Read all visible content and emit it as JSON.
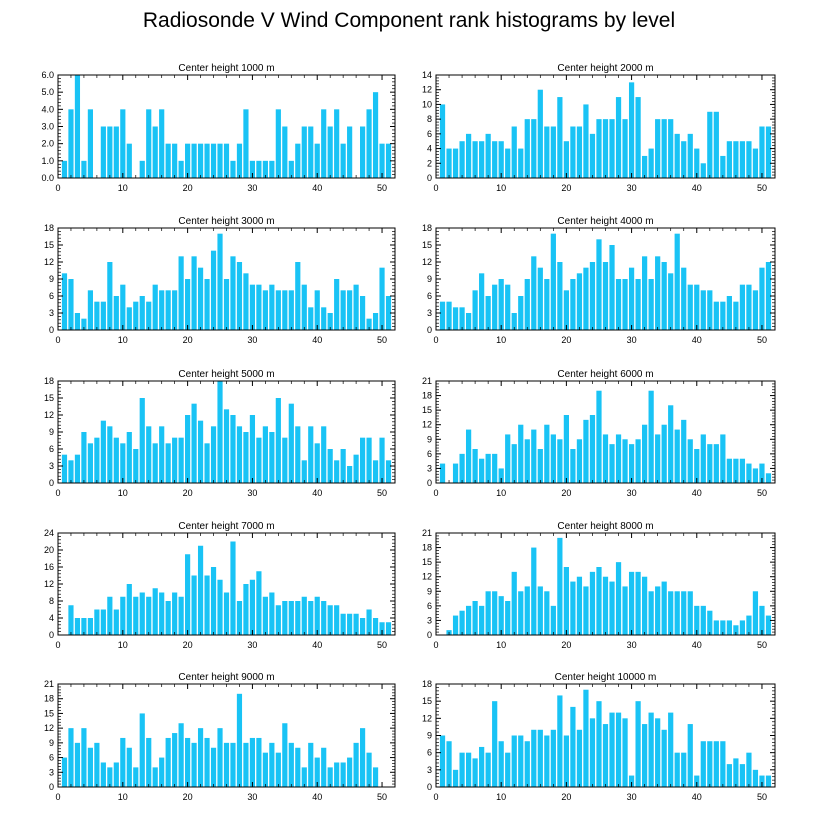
{
  "title": "Radiosonde V Wind Component rank histograms by level",
  "colors": {
    "bar": "#19c3f5",
    "axis": "#000000",
    "background": "#ffffff"
  },
  "chart_data": [
    {
      "type": "bar",
      "title": "Center height 1000 m",
      "x": [
        1,
        2,
        3,
        4,
        5,
        6,
        7,
        8,
        9,
        10,
        11,
        12,
        13,
        14,
        15,
        16,
        17,
        18,
        19,
        20,
        21,
        22,
        23,
        24,
        25,
        26,
        27,
        28,
        29,
        30,
        31,
        32,
        33,
        34,
        35,
        36,
        37,
        38,
        39,
        40,
        41,
        42,
        43,
        44,
        45,
        46,
        47,
        48,
        49,
        50,
        51
      ],
      "values": [
        1,
        4,
        6,
        1,
        4,
        0,
        3,
        3,
        3,
        4,
        2,
        0,
        1,
        4,
        3,
        4,
        2,
        2,
        1,
        2,
        2,
        2,
        2,
        2,
        2,
        2,
        1,
        2,
        4,
        1,
        1,
        1,
        1,
        4,
        3,
        1,
        2,
        3,
        3,
        2,
        4,
        3,
        4,
        2,
        3,
        0,
        3,
        4,
        5,
        2,
        2
      ],
      "xlim": [
        0,
        52
      ],
      "ylim": [
        0,
        6
      ],
      "yticks": [
        0,
        1,
        2,
        3,
        4,
        5,
        6
      ],
      "yticklabels": [
        "0.0",
        "1.0",
        "2.0",
        "3.0",
        "4.0",
        "5.0",
        "6.0"
      ],
      "xticks": [
        0,
        10,
        20,
        30,
        40,
        50
      ]
    },
    {
      "type": "bar",
      "title": "Center height 2000 m",
      "x": [
        1,
        2,
        3,
        4,
        5,
        6,
        7,
        8,
        9,
        10,
        11,
        12,
        13,
        14,
        15,
        16,
        17,
        18,
        19,
        20,
        21,
        22,
        23,
        24,
        25,
        26,
        27,
        28,
        29,
        30,
        31,
        32,
        33,
        34,
        35,
        36,
        37,
        38,
        39,
        40,
        41,
        42,
        43,
        44,
        45,
        46,
        47,
        48,
        49,
        50,
        51
      ],
      "values": [
        10,
        4,
        4,
        5,
        6,
        5,
        5,
        6,
        5,
        5,
        4,
        7,
        4,
        8,
        8,
        12,
        7,
        7,
        11,
        5,
        7,
        7,
        10,
        6,
        8,
        8,
        8,
        11,
        8,
        13,
        11,
        3,
        4,
        8,
        8,
        8,
        6,
        5,
        6,
        4,
        2,
        9,
        9,
        3,
        5,
        5,
        5,
        5,
        4,
        7,
        7
      ],
      "xlim": [
        0,
        52
      ],
      "ylim": [
        0,
        14
      ],
      "yticks": [
        0,
        2,
        4,
        6,
        8,
        10,
        12,
        14
      ],
      "yticklabels": [
        "0",
        "2",
        "4",
        "6",
        "8",
        "10",
        "12",
        "14"
      ],
      "xticks": [
        0,
        10,
        20,
        30,
        40,
        50
      ]
    },
    {
      "type": "bar",
      "title": "Center height 3000 m",
      "x": [
        1,
        2,
        3,
        4,
        5,
        6,
        7,
        8,
        9,
        10,
        11,
        12,
        13,
        14,
        15,
        16,
        17,
        18,
        19,
        20,
        21,
        22,
        23,
        24,
        25,
        26,
        27,
        28,
        29,
        30,
        31,
        32,
        33,
        34,
        35,
        36,
        37,
        38,
        39,
        40,
        41,
        42,
        43,
        44,
        45,
        46,
        47,
        48,
        49,
        50,
        51
      ],
      "values": [
        10,
        9,
        3,
        2,
        7,
        5,
        5,
        12,
        6,
        8,
        4,
        5,
        6,
        5,
        8,
        7,
        7,
        7,
        13,
        9,
        13,
        11,
        9,
        14,
        17,
        9,
        13,
        12,
        10,
        8,
        8,
        7,
        8,
        7,
        7,
        7,
        12,
        8,
        4,
        7,
        4,
        3,
        9,
        7,
        7,
        8,
        6,
        2,
        3,
        11,
        6
      ],
      "xlim": [
        0,
        52
      ],
      "ylim": [
        0,
        18
      ],
      "yticks": [
        0,
        3,
        6,
        9,
        12,
        15,
        18
      ],
      "yticklabels": [
        "0",
        "3",
        "6",
        "9",
        "12",
        "15",
        "18"
      ],
      "xticks": [
        0,
        10,
        20,
        30,
        40,
        50
      ]
    },
    {
      "type": "bar",
      "title": "Center height 4000 m",
      "x": [
        1,
        2,
        3,
        4,
        5,
        6,
        7,
        8,
        9,
        10,
        11,
        12,
        13,
        14,
        15,
        16,
        17,
        18,
        19,
        20,
        21,
        22,
        23,
        24,
        25,
        26,
        27,
        28,
        29,
        30,
        31,
        32,
        33,
        34,
        35,
        36,
        37,
        38,
        39,
        40,
        41,
        42,
        43,
        44,
        45,
        46,
        47,
        48,
        49,
        50,
        51
      ],
      "values": [
        5,
        5,
        4,
        4,
        3,
        7,
        10,
        6,
        8,
        9,
        8,
        3,
        6,
        9,
        13,
        11,
        9,
        17,
        12,
        7,
        9,
        10,
        11,
        12,
        16,
        12,
        15,
        9,
        9,
        11,
        9,
        13,
        9,
        13,
        12,
        10,
        17,
        11,
        8,
        8,
        7,
        7,
        5,
        5,
        6,
        5,
        8,
        8,
        7,
        11,
        12
      ],
      "xlim": [
        0,
        52
      ],
      "ylim": [
        0,
        18
      ],
      "yticks": [
        0,
        3,
        6,
        9,
        12,
        15,
        18
      ],
      "yticklabels": [
        "0",
        "3",
        "6",
        "9",
        "12",
        "15",
        "18"
      ],
      "xticks": [
        0,
        10,
        20,
        30,
        40,
        50
      ]
    },
    {
      "type": "bar",
      "title": "Center height 5000 m",
      "x": [
        1,
        2,
        3,
        4,
        5,
        6,
        7,
        8,
        9,
        10,
        11,
        12,
        13,
        14,
        15,
        16,
        17,
        18,
        19,
        20,
        21,
        22,
        23,
        24,
        25,
        26,
        27,
        28,
        29,
        30,
        31,
        32,
        33,
        34,
        35,
        36,
        37,
        38,
        39,
        40,
        41,
        42,
        43,
        44,
        45,
        46,
        47,
        48,
        49,
        50,
        51
      ],
      "values": [
        5,
        4,
        5,
        9,
        7,
        8,
        11,
        10,
        8,
        7,
        9,
        6,
        15,
        10,
        7,
        10,
        7,
        8,
        8,
        12,
        14,
        11,
        7,
        10,
        18,
        13,
        12,
        10,
        9,
        12,
        8,
        10,
        9,
        15,
        8,
        14,
        10,
        4,
        10,
        7,
        10,
        6,
        4,
        6,
        3,
        5,
        8,
        8,
        4,
        8,
        4
      ],
      "xlim": [
        0,
        52
      ],
      "ylim": [
        0,
        18
      ],
      "yticks": [
        0,
        3,
        6,
        9,
        12,
        15,
        18
      ],
      "yticklabels": [
        "0",
        "3",
        "6",
        "9",
        "12",
        "15",
        "18"
      ],
      "xticks": [
        0,
        10,
        20,
        30,
        40,
        50
      ]
    },
    {
      "type": "bar",
      "title": "Center height 6000 m",
      "x": [
        1,
        2,
        3,
        4,
        5,
        6,
        7,
        8,
        9,
        10,
        11,
        12,
        13,
        14,
        15,
        16,
        17,
        18,
        19,
        20,
        21,
        22,
        23,
        24,
        25,
        26,
        27,
        28,
        29,
        30,
        31,
        32,
        33,
        34,
        35,
        36,
        37,
        38,
        39,
        40,
        41,
        42,
        43,
        44,
        45,
        46,
        47,
        48,
        49,
        50,
        51
      ],
      "values": [
        4,
        0,
        4,
        6,
        11,
        7,
        5,
        6,
        6,
        3,
        10,
        8,
        12,
        9,
        11,
        7,
        12,
        10,
        9,
        14,
        7,
        9,
        13,
        14,
        19,
        10,
        8,
        10,
        9,
        8,
        9,
        12,
        19,
        10,
        12,
        16,
        11,
        13,
        9,
        7,
        10,
        8,
        8,
        10,
        5,
        5,
        5,
        4,
        3,
        4,
        2
      ],
      "xlim": [
        0,
        52
      ],
      "ylim": [
        0,
        21
      ],
      "yticks": [
        0,
        3,
        6,
        9,
        12,
        15,
        18,
        21
      ],
      "yticklabels": [
        "0",
        "3",
        "6",
        "9",
        "12",
        "15",
        "18",
        "21"
      ],
      "xticks": [
        0,
        10,
        20,
        30,
        40,
        50
      ]
    },
    {
      "type": "bar",
      "title": "Center height 7000 m",
      "x": [
        1,
        2,
        3,
        4,
        5,
        6,
        7,
        8,
        9,
        10,
        11,
        12,
        13,
        14,
        15,
        16,
        17,
        18,
        19,
        20,
        21,
        22,
        23,
        24,
        25,
        26,
        27,
        28,
        29,
        30,
        31,
        32,
        33,
        34,
        35,
        36,
        37,
        38,
        39,
        40,
        41,
        42,
        43,
        44,
        45,
        46,
        47,
        48,
        49,
        50,
        51
      ],
      "values": [
        0,
        7,
        4,
        4,
        4,
        6,
        6,
        9,
        6,
        9,
        12,
        9,
        10,
        9,
        11,
        10,
        8,
        10,
        9,
        19,
        14,
        21,
        14,
        16,
        13,
        10,
        22,
        8,
        12,
        13,
        15,
        9,
        10,
        7,
        8,
        8,
        8,
        9,
        8,
        9,
        8,
        7,
        7,
        5,
        5,
        5,
        4,
        6,
        4,
        3,
        3
      ],
      "xlim": [
        0,
        52
      ],
      "ylim": [
        0,
        24
      ],
      "yticks": [
        0,
        4,
        8,
        12,
        16,
        20,
        24
      ],
      "yticklabels": [
        "0",
        "4",
        "8",
        "12",
        "16",
        "20",
        "24"
      ],
      "xticks": [
        0,
        10,
        20,
        30,
        40,
        50
      ]
    },
    {
      "type": "bar",
      "title": "Center height 8000 m",
      "x": [
        1,
        2,
        3,
        4,
        5,
        6,
        7,
        8,
        9,
        10,
        11,
        12,
        13,
        14,
        15,
        16,
        17,
        18,
        19,
        20,
        21,
        22,
        23,
        24,
        25,
        26,
        27,
        28,
        29,
        30,
        31,
        32,
        33,
        34,
        35,
        36,
        37,
        38,
        39,
        40,
        41,
        42,
        43,
        44,
        45,
        46,
        47,
        48,
        49,
        50,
        51
      ],
      "values": [
        0,
        1,
        4,
        5,
        6,
        7,
        6,
        9,
        9,
        8,
        7,
        13,
        9,
        10,
        18,
        10,
        9,
        6,
        20,
        14,
        11,
        12,
        10,
        13,
        14,
        12,
        11,
        15,
        10,
        13,
        13,
        12,
        9,
        10,
        11,
        9,
        9,
        9,
        9,
        6,
        6,
        5,
        3,
        3,
        3,
        2,
        3,
        4,
        9,
        6,
        4
      ],
      "xlim": [
        0,
        52
      ],
      "ylim": [
        0,
        21
      ],
      "yticks": [
        0,
        3,
        6,
        9,
        12,
        15,
        18,
        21
      ],
      "yticklabels": [
        "0",
        "3",
        "6",
        "9",
        "12",
        "15",
        "18",
        "21"
      ],
      "xticks": [
        0,
        10,
        20,
        30,
        40,
        50
      ]
    },
    {
      "type": "bar",
      "title": "Center height 9000 m",
      "x": [
        1,
        2,
        3,
        4,
        5,
        6,
        7,
        8,
        9,
        10,
        11,
        12,
        13,
        14,
        15,
        16,
        17,
        18,
        19,
        20,
        21,
        22,
        23,
        24,
        25,
        26,
        27,
        28,
        29,
        30,
        31,
        32,
        33,
        34,
        35,
        36,
        37,
        38,
        39,
        40,
        41,
        42,
        43,
        44,
        45,
        46,
        47,
        48,
        49,
        50,
        51
      ],
      "values": [
        6,
        12,
        9,
        12,
        8,
        9,
        5,
        4,
        5,
        10,
        8,
        4,
        15,
        10,
        4,
        6,
        10,
        11,
        13,
        10,
        9,
        12,
        10,
        8,
        12,
        9,
        9,
        19,
        9,
        10,
        10,
        7,
        9,
        7,
        13,
        9,
        8,
        4,
        9,
        6,
        8,
        4,
        5,
        5,
        6,
        9,
        12,
        7,
        4,
        0,
        0
      ],
      "xlim": [
        0,
        52
      ],
      "ylim": [
        0,
        21
      ],
      "yticks": [
        0,
        3,
        6,
        9,
        12,
        15,
        18,
        21
      ],
      "yticklabels": [
        "0",
        "3",
        "6",
        "9",
        "12",
        "15",
        "18",
        "21"
      ],
      "xticks": [
        0,
        10,
        20,
        30,
        40,
        50
      ]
    },
    {
      "type": "bar",
      "title": "Center height 10000 m",
      "x": [
        1,
        2,
        3,
        4,
        5,
        6,
        7,
        8,
        9,
        10,
        11,
        12,
        13,
        14,
        15,
        16,
        17,
        18,
        19,
        20,
        21,
        22,
        23,
        24,
        25,
        26,
        27,
        28,
        29,
        30,
        31,
        32,
        33,
        34,
        35,
        36,
        37,
        38,
        39,
        40,
        41,
        42,
        43,
        44,
        45,
        46,
        47,
        48,
        49,
        50,
        51
      ],
      "values": [
        9,
        8,
        3,
        6,
        6,
        5,
        7,
        6,
        15,
        8,
        6,
        9,
        9,
        8,
        10,
        10,
        9,
        10,
        16,
        9,
        14,
        10,
        17,
        12,
        15,
        11,
        13,
        13,
        12,
        2,
        15,
        11,
        13,
        12,
        10,
        13,
        6,
        6,
        11,
        2,
        8,
        8,
        8,
        8,
        4,
        5,
        4,
        6,
        3,
        2,
        2
      ],
      "xlim": [
        0,
        52
      ],
      "ylim": [
        0,
        18
      ],
      "yticks": [
        0,
        3,
        6,
        9,
        12,
        15,
        18
      ],
      "yticklabels": [
        "0",
        "3",
        "6",
        "9",
        "12",
        "15",
        "18"
      ],
      "xticks": [
        0,
        10,
        20,
        30,
        40,
        50
      ]
    }
  ]
}
